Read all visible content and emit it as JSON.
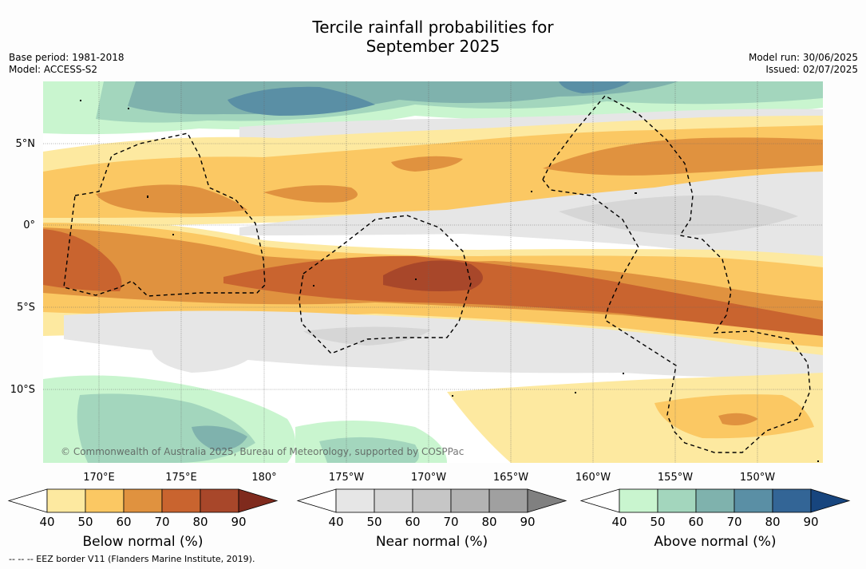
{
  "title": {
    "line1": "Tercile rainfall probabilities for",
    "line2": "September 2025"
  },
  "meta_left": {
    "base_period": "Base period: 1981-2018",
    "model": "Model: ACCESS-S2"
  },
  "meta_right": {
    "model_run": "Model run: 30/06/2025",
    "issued": "Issued: 02/07/2025"
  },
  "map": {
    "lat_labels": [
      "5°N",
      "0°",
      "5°S",
      "10°S"
    ],
    "lon_labels": [
      "170°E",
      "175°E",
      "180°",
      "175°W",
      "170°W",
      "165°W",
      "160°W",
      "155°W",
      "150°W"
    ],
    "copyright": "© Commonwealth of Australia 2025, Bureau of Meteorology, supported by COSPPac"
  },
  "colorbars": [
    {
      "title": "Below normal (%)",
      "ticks": [
        "40",
        "50",
        "60",
        "70",
        "80",
        "90"
      ],
      "colors": [
        "#ffffff",
        "#fde9a0",
        "#fbc863",
        "#e0923f",
        "#c9642f",
        "#a8472a",
        "#7f2a1d"
      ]
    },
    {
      "title": "Near normal (%)",
      "ticks": [
        "40",
        "50",
        "60",
        "70",
        "80",
        "90"
      ],
      "colors": [
        "#ffffff",
        "#e6e6e6",
        "#d6d6d6",
        "#c6c6c6",
        "#b3b3b3",
        "#a0a0a0",
        "#808080"
      ]
    },
    {
      "title": "Above normal (%)",
      "ticks": [
        "40",
        "50",
        "60",
        "70",
        "80",
        "90"
      ],
      "colors": [
        "#ffffff",
        "#c9f5cf",
        "#a3d6bd",
        "#7fb2ad",
        "#5a8fa5",
        "#336596",
        "#17457e"
      ]
    }
  ],
  "footnote": "--  --  -- EEZ border V11 (Flanders Marine Institute, 2019)."
}
